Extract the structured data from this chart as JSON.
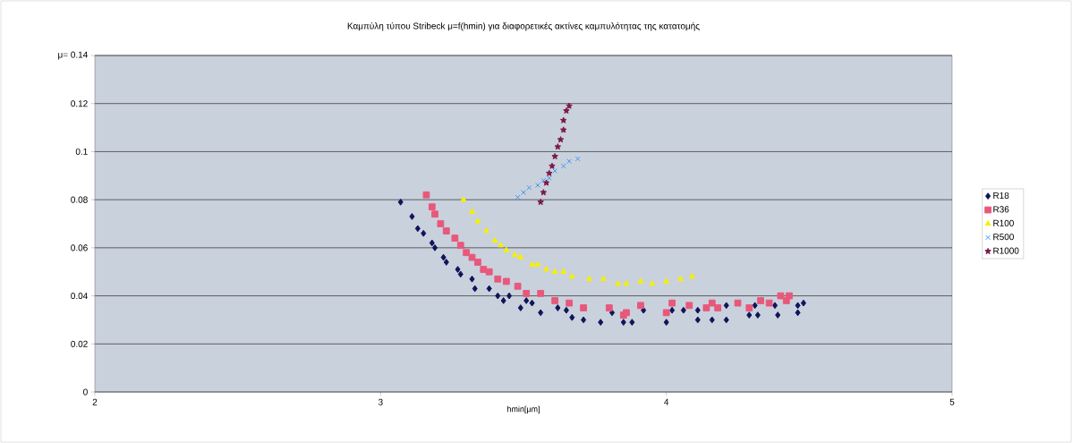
{
  "chart_data": {
    "type": "scatter",
    "title": "Καμπύλη τύπου Stribeck μ=f(hmin) για διαφορετικές ακτίνες καμπυλότητας της κατατομής",
    "xlabel": "hmin[μm]",
    "xlim": [
      2,
      5
    ],
    "xticks": [
      2,
      3,
      4,
      5
    ],
    "ylim": [
      0,
      0.14
    ],
    "yticks": [
      0,
      0.02,
      0.04,
      0.06,
      0.08,
      0.1,
      0.12,
      {
        "value": 0.14,
        "label": "μ= 0.14"
      }
    ],
    "grid": "y",
    "legend": "right",
    "series": [
      {
        "name": "R18",
        "color": "#10145a",
        "marker": "diamond",
        "x": [
          3.07,
          3.11,
          3.13,
          3.15,
          3.18,
          3.19,
          3.22,
          3.23,
          3.27,
          3.28,
          3.32,
          3.33,
          3.38,
          3.41,
          3.43,
          3.45,
          3.49,
          3.51,
          3.53,
          3.56,
          3.62,
          3.65,
          3.67,
          3.71,
          3.77,
          3.81,
          3.85,
          3.88,
          3.92,
          4.0,
          4.02,
          4.06,
          4.11,
          4.11,
          4.16,
          4.21,
          4.21,
          4.29,
          4.31,
          4.32,
          4.38,
          4.39,
          4.46,
          4.46,
          4.48
        ],
        "values": [
          0.079,
          0.073,
          0.068,
          0.066,
          0.062,
          0.06,
          0.056,
          0.054,
          0.051,
          0.049,
          0.047,
          0.043,
          0.043,
          0.04,
          0.038,
          0.04,
          0.035,
          0.038,
          0.037,
          0.033,
          0.035,
          0.034,
          0.031,
          0.03,
          0.029,
          0.033,
          0.029,
          0.029,
          0.034,
          0.029,
          0.034,
          0.034,
          0.03,
          0.034,
          0.03,
          0.036,
          0.03,
          0.032,
          0.036,
          0.032,
          0.036,
          0.032,
          0.033,
          0.036,
          0.037
        ]
      },
      {
        "name": "R36",
        "color": "#e8587a",
        "marker": "square",
        "x": [
          3.16,
          3.18,
          3.19,
          3.21,
          3.23,
          3.26,
          3.28,
          3.3,
          3.32,
          3.34,
          3.36,
          3.38,
          3.41,
          3.44,
          3.48,
          3.51,
          3.56,
          3.61,
          3.66,
          3.71,
          3.8,
          3.85,
          3.86,
          3.91,
          4.0,
          4.02,
          4.08,
          4.14,
          4.16,
          4.18,
          4.25,
          4.29,
          4.33,
          4.36,
          4.4,
          4.42,
          4.43
        ],
        "values": [
          0.082,
          0.077,
          0.074,
          0.07,
          0.067,
          0.064,
          0.061,
          0.058,
          0.056,
          0.054,
          0.051,
          0.05,
          0.047,
          0.046,
          0.044,
          0.041,
          0.041,
          0.038,
          0.037,
          0.035,
          0.035,
          0.032,
          0.033,
          0.036,
          0.033,
          0.037,
          0.036,
          0.035,
          0.037,
          0.035,
          0.037,
          0.035,
          0.038,
          0.037,
          0.04,
          0.038,
          0.04
        ]
      },
      {
        "name": "R100",
        "color": "#f5f000",
        "marker": "triangle",
        "x": [
          3.29,
          3.32,
          3.34,
          3.37,
          3.4,
          3.42,
          3.44,
          3.47,
          3.49,
          3.53,
          3.55,
          3.58,
          3.61,
          3.64,
          3.67,
          3.73,
          3.78,
          3.83,
          3.86,
          3.91,
          3.95,
          4.0,
          4.05,
          4.09
        ],
        "values": [
          0.08,
          0.075,
          0.071,
          0.067,
          0.063,
          0.061,
          0.059,
          0.057,
          0.056,
          0.053,
          0.053,
          0.051,
          0.05,
          0.05,
          0.048,
          0.047,
          0.047,
          0.045,
          0.045,
          0.046,
          0.045,
          0.046,
          0.047,
          0.048
        ]
      },
      {
        "name": "R500",
        "color": "#3a9af0",
        "marker": "cross",
        "x": [
          3.48,
          3.5,
          3.52,
          3.55,
          3.57,
          3.59,
          3.61,
          3.64,
          3.66,
          3.69
        ],
        "values": [
          0.081,
          0.083,
          0.085,
          0.086,
          0.088,
          0.089,
          0.092,
          0.094,
          0.096,
          0.097
        ]
      },
      {
        "name": "R1000",
        "color": "#7a1a4a",
        "marker": "star",
        "x": [
          3.56,
          3.57,
          3.58,
          3.59,
          3.6,
          3.61,
          3.62,
          3.63,
          3.64,
          3.64,
          3.65,
          3.66
        ],
        "values": [
          0.079,
          0.083,
          0.087,
          0.091,
          0.094,
          0.098,
          0.102,
          0.105,
          0.109,
          0.113,
          0.117,
          0.119
        ]
      }
    ]
  }
}
